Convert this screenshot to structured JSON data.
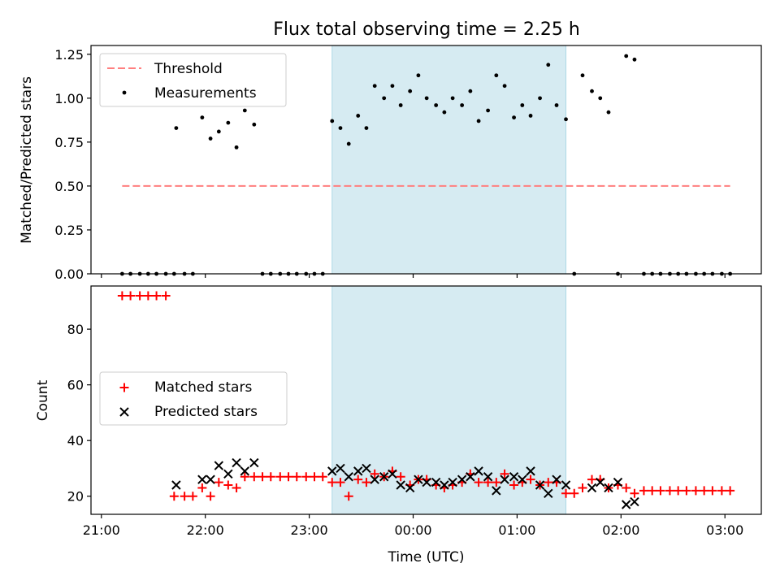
{
  "title": "Flux total observing time = 2.25 h",
  "chart_data": [
    {
      "type": "scatter",
      "panel": "top",
      "ylabel": "Matched/Predicted stars",
      "xlabel": "",
      "x_unit": "hours from 21:00 UTC",
      "xlim": [
        -0.1,
        6.35
      ],
      "ylim": [
        0,
        1.3
      ],
      "y_ticks": [
        "0.00",
        "0.25",
        "0.50",
        "0.75",
        "1.00",
        "1.25"
      ],
      "shaded_interval": [
        2.22,
        4.47
      ],
      "grid": false,
      "legend_position": "top-left",
      "series": [
        {
          "name": "Threshold",
          "style": "dashed-line",
          "color": "#ff7f7f",
          "x": [
            0.2,
            6.05
          ],
          "y": [
            0.5,
            0.5
          ]
        },
        {
          "name": "Measurements",
          "style": "dot",
          "color": "#000000",
          "x": [
            0.2,
            0.28,
            0.37,
            0.45,
            0.53,
            0.62,
            0.7,
            0.72,
            0.8,
            0.88,
            0.97,
            1.05,
            1.13,
            1.22,
            1.3,
            1.38,
            1.47,
            1.55,
            1.63,
            1.72,
            1.8,
            1.88,
            1.97,
            2.05,
            2.13,
            2.22,
            2.3,
            2.38,
            2.47,
            2.55,
            2.63,
            2.72,
            2.8,
            2.88,
            2.97,
            3.05,
            3.13,
            3.22,
            3.3,
            3.38,
            3.47,
            3.55,
            3.63,
            3.72,
            3.8,
            3.88,
            3.97,
            4.05,
            4.13,
            4.22,
            4.3,
            4.38,
            4.47,
            4.55,
            4.63,
            4.72,
            4.8,
            4.88,
            4.97,
            5.05,
            5.13,
            5.22,
            5.3,
            5.38,
            5.47,
            5.55,
            5.63,
            5.72,
            5.8,
            5.88,
            5.97,
            6.05
          ],
          "y": [
            0,
            0,
            0,
            0,
            0,
            0,
            0,
            0.83,
            0,
            0,
            0.89,
            0.77,
            0.81,
            0.86,
            0.72,
            0.93,
            0.85,
            0,
            0,
            0,
            0,
            0,
            0,
            0,
            0,
            0.87,
            0.83,
            0.74,
            0.9,
            0.83,
            1.07,
            1.0,
            1.07,
            0.96,
            1.04,
            1.13,
            1.0,
            0.96,
            0.92,
            1.0,
            0.96,
            1.04,
            0.87,
            0.93,
            1.13,
            1.07,
            0.89,
            0.96,
            0.9,
            1.0,
            1.19,
            0.96,
            0.88,
            0,
            1.13,
            1.04,
            1.0,
            0.92,
            0,
            1.24,
            1.22,
            0,
            0,
            0,
            0,
            0,
            0,
            0,
            0,
            0,
            0,
            0
          ]
        }
      ]
    },
    {
      "type": "scatter",
      "panel": "bottom",
      "ylabel": "Count",
      "xlabel": "Time (UTC)",
      "x_ticks": [
        "21:00",
        "22:00",
        "23:00",
        "00:00",
        "01:00",
        "02:00",
        "03:00"
      ],
      "x_unit": "hours from 21:00 UTC",
      "xlim": [
        -0.1,
        6.35
      ],
      "ylim": [
        13.5,
        95.5
      ],
      "y_ticks": [
        "20",
        "40",
        "60",
        "80"
      ],
      "shaded_interval": [
        2.22,
        4.47
      ],
      "grid": false,
      "legend_position": "center-left",
      "series": [
        {
          "name": "Matched stars",
          "marker": "+",
          "color": "#ff0000",
          "x": [
            0.2,
            0.28,
            0.37,
            0.45,
            0.53,
            0.62,
            0.7,
            0.8,
            0.88,
            0.97,
            1.05,
            1.13,
            1.22,
            1.3,
            1.38,
            1.47,
            1.55,
            1.63,
            1.72,
            1.8,
            1.88,
            1.97,
            2.05,
            2.13,
            2.22,
            2.3,
            2.38,
            2.47,
            2.55,
            2.63,
            2.72,
            2.8,
            2.88,
            2.97,
            3.05,
            3.13,
            3.22,
            3.3,
            3.38,
            3.47,
            3.55,
            3.63,
            3.72,
            3.8,
            3.88,
            3.97,
            4.05,
            4.13,
            4.22,
            4.3,
            4.38,
            4.47,
            4.55,
            4.63,
            4.72,
            4.8,
            4.88,
            4.97,
            5.05,
            5.13,
            5.22,
            5.3,
            5.38,
            5.47,
            5.55,
            5.63,
            5.72,
            5.8,
            5.88,
            5.97,
            6.05
          ],
          "y": [
            92,
            92,
            92,
            92,
            92,
            92,
            20,
            20,
            20,
            23,
            20,
            25,
            24,
            23,
            27,
            27,
            27,
            27,
            27,
            27,
            27,
            27,
            27,
            27,
            25,
            25,
            20,
            26,
            25,
            28,
            27,
            29,
            27,
            24,
            26,
            26,
            24,
            23,
            24,
            25,
            28,
            25,
            25,
            25,
            28,
            24,
            25,
            26,
            24,
            25,
            25,
            21,
            21,
            23,
            26,
            26,
            23,
            24,
            23,
            21,
            22,
            22,
            22,
            22,
            22,
            22,
            22,
            22,
            22,
            22,
            22
          ]
        },
        {
          "name": "Predicted stars",
          "marker": "x",
          "color": "#000000",
          "x": [
            0.72,
            0.97,
            1.05,
            1.13,
            1.22,
            1.3,
            1.38,
            1.47,
            2.22,
            2.3,
            2.38,
            2.47,
            2.55,
            2.63,
            2.72,
            2.8,
            2.88,
            2.97,
            3.05,
            3.13,
            3.22,
            3.3,
            3.38,
            3.47,
            3.55,
            3.63,
            3.72,
            3.8,
            3.88,
            3.97,
            4.05,
            4.13,
            4.22,
            4.3,
            4.38,
            4.47,
            4.72,
            4.8,
            4.88,
            4.97,
            5.05,
            5.13
          ],
          "y": [
            24,
            26,
            26,
            31,
            28,
            32,
            29,
            32,
            29,
            30,
            27,
            29,
            30,
            26,
            27,
            28,
            24,
            23,
            26,
            25,
            25,
            24,
            25,
            26,
            27,
            29,
            27,
            22,
            26,
            27,
            26,
            29,
            24,
            21,
            26,
            24,
            23,
            25,
            23,
            25,
            17,
            18
          ]
        }
      ]
    }
  ]
}
